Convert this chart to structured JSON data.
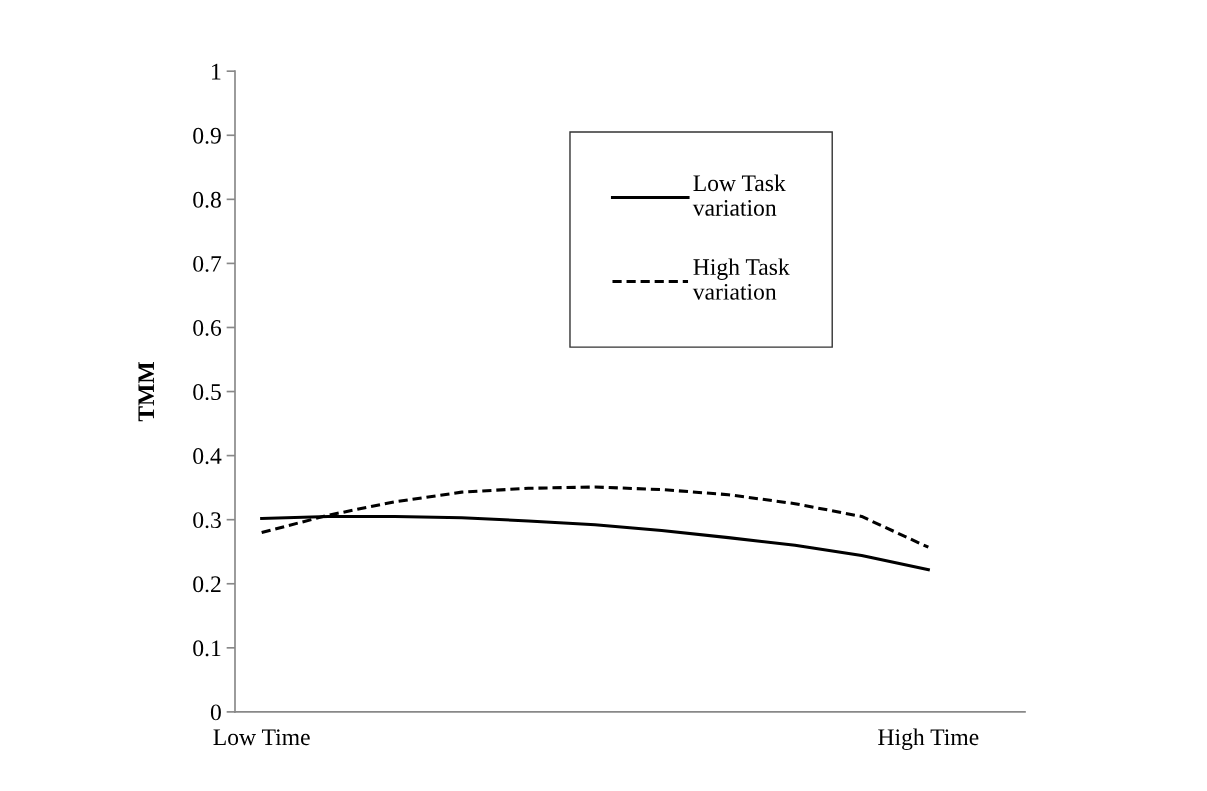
{
  "chart_data": {
    "type": "line",
    "ylabel": "TMM",
    "categories": [
      "Low Time",
      null,
      null,
      null,
      null,
      null,
      null,
      null,
      null,
      null,
      "High Time"
    ],
    "series": [
      {
        "name": "Low Task\nvariation",
        "color": "#000000",
        "line_style": "solid",
        "values": [
          0.302,
          0.305,
          0.305,
          0.303,
          0.298,
          0.292,
          0.283,
          0.272,
          0.26,
          0.244,
          0.222
        ]
      },
      {
        "name": "High Task\nvariation",
        "color": "#000000",
        "line_style": "dashed",
        "values": [
          0.28,
          0.307,
          0.328,
          0.343,
          0.349,
          0.351,
          0.347,
          0.339,
          0.325,
          0.305,
          0.257
        ]
      }
    ],
    "ylim": [
      0,
      1
    ],
    "yticks": [
      0,
      0.1,
      0.2,
      0.3,
      0.4,
      0.5,
      0.6,
      0.7,
      0.8,
      0.9,
      1
    ],
    "grid": false,
    "legend": "top"
  }
}
